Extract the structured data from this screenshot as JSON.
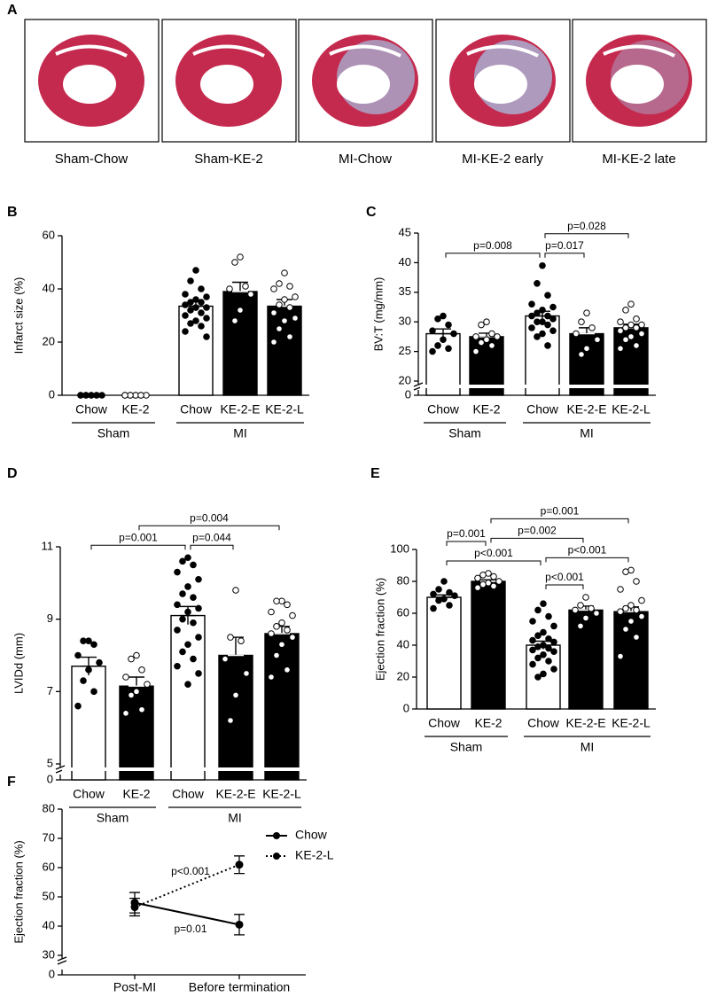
{
  "histology": {
    "panel": "A",
    "captions": [
      "Sham-Chow",
      "Sham-KE-2",
      "MI-Chow",
      "MI-KE-2 early",
      "MI-KE-2 late"
    ]
  },
  "chart_data": [
    {
      "panel": "B",
      "type": "bar",
      "ylabel": "Infarct size (%)",
      "categories": [
        "Chow",
        "KE-2",
        "Chow",
        "KE-2-E",
        "KE-2-L"
      ],
      "groups": [
        {
          "name": "Sham",
          "members": [
            0,
            1
          ]
        },
        {
          "name": "MI",
          "members": [
            2,
            3,
            4
          ]
        }
      ],
      "values": [
        0,
        0,
        33.5,
        39,
        33.5
      ],
      "errors": [
        null,
        null,
        1.8,
        3.5,
        2.5
      ],
      "points": [
        [
          0,
          0,
          0,
          0,
          0,
          0,
          0,
          0,
          0
        ],
        [
          0,
          0,
          0,
          0,
          0,
          0,
          0,
          0,
          0
        ],
        [
          47,
          43,
          40,
          38,
          37,
          36,
          35,
          35,
          34,
          33,
          33,
          32,
          31,
          30,
          29,
          28,
          27,
          26,
          24,
          22
        ],
        [
          52,
          50,
          41,
          40,
          38,
          32,
          28
        ],
        [
          46,
          42,
          41,
          40,
          37,
          36,
          34,
          33,
          31,
          29,
          28,
          25,
          22,
          20
        ]
      ],
      "bar_colors": [
        "#ffffff",
        "#000000",
        "#ffffff",
        "#000000",
        "#000000"
      ],
      "marker_colors": [
        "#000000",
        "#ffffff",
        "#000000",
        "#ffffff",
        "#ffffff"
      ],
      "ylim": [
        0,
        60
      ],
      "yticks": [
        0,
        20,
        40,
        60
      ],
      "comparisons": []
    },
    {
      "panel": "C",
      "type": "bar",
      "ylabel": "BV:T (mg/mm)",
      "categories": [
        "Chow",
        "KE-2",
        "Chow",
        "KE-2-E",
        "KE-2-L"
      ],
      "groups": [
        {
          "name": "Sham",
          "members": [
            0,
            1
          ]
        },
        {
          "name": "MI",
          "members": [
            2,
            3,
            4
          ]
        }
      ],
      "values": [
        28,
        27.5,
        31,
        28,
        29
      ],
      "errors": [
        0.8,
        0.6,
        0.8,
        1,
        0.6
      ],
      "points": [
        [
          31,
          30.5,
          29.5,
          28.5,
          28,
          27,
          26,
          25.5,
          25
        ],
        [
          30,
          29.5,
          28,
          27.5,
          27.5,
          27,
          26.5,
          26,
          25
        ],
        [
          39.5,
          36.5,
          34.5,
          33,
          32.5,
          32,
          31.5,
          31,
          31,
          30.5,
          30,
          30,
          29.5,
          29,
          28.5,
          28,
          27.5,
          26
        ],
        [
          31.5,
          30,
          29,
          28,
          27,
          25.5,
          24.5
        ],
        [
          33,
          32,
          30.5,
          30,
          29.5,
          29.5,
          29,
          29,
          28.5,
          28,
          27.5,
          27,
          26,
          25.5
        ]
      ],
      "bar_colors": [
        "#ffffff",
        "#000000",
        "#ffffff",
        "#000000",
        "#000000"
      ],
      "marker_colors": [
        "#000000",
        "#ffffff",
        "#000000",
        "#ffffff",
        "#ffffff"
      ],
      "ylim": [
        20,
        45
      ],
      "yticks": [
        20,
        25,
        30,
        35,
        40,
        45
      ],
      "ybreak_tick": 0,
      "comparisons": [
        {
          "label": "p=0.017",
          "between": [
            2,
            3
          ]
        },
        {
          "label": "p=0.008",
          "between": [
            0,
            2
          ]
        },
        {
          "label": "p=0.028",
          "between": [
            2,
            4
          ]
        }
      ]
    },
    {
      "panel": "D",
      "type": "bar",
      "ylabel": "LVIDd (mm)",
      "categories": [
        "Chow",
        "KE-2",
        "Chow",
        "KE-2-E",
        "KE-2-L"
      ],
      "groups": [
        {
          "name": "Sham",
          "members": [
            0,
            1
          ]
        },
        {
          "name": "MI",
          "members": [
            2,
            3,
            4
          ]
        }
      ],
      "values": [
        7.7,
        7.15,
        9.1,
        8,
        8.6
      ],
      "errors": [
        0.25,
        0.25,
        0.25,
        0.5,
        0.2
      ],
      "points": [
        [
          8.4,
          8.4,
          8.3,
          8,
          7.8,
          7.6,
          7.3,
          7,
          6.6
        ],
        [
          8,
          7.9,
          7.6,
          7.4,
          7.2,
          7,
          6.9,
          6.5,
          6.4
        ],
        [
          10.7,
          10.6,
          10.5,
          10.3,
          10.1,
          9.9,
          9.7,
          9.6,
          9.4,
          9.3,
          9.2,
          9,
          8.9,
          8.7,
          8.5,
          8.3,
          8.1,
          7.9,
          7.7,
          7.5,
          7.2
        ],
        [
          9.8,
          8.5,
          8.4,
          7.9,
          7.5,
          6.9,
          6.2
        ],
        [
          9.5,
          9.5,
          9.4,
          9.2,
          9.1,
          8.9,
          8.8,
          8.7,
          8.6,
          8.5,
          8.3,
          8,
          7.6,
          7.4
        ]
      ],
      "bar_colors": [
        "#ffffff",
        "#000000",
        "#ffffff",
        "#000000",
        "#000000"
      ],
      "marker_colors": [
        "#000000",
        "#ffffff",
        "#000000",
        "#ffffff",
        "#ffffff"
      ],
      "ylim": [
        5,
        11
      ],
      "yticks": [
        5,
        7,
        9,
        11
      ],
      "ybreak_tick": 0,
      "comparisons": [
        {
          "label": "p=0.044",
          "between": [
            2,
            3
          ]
        },
        {
          "label": "p=0.001",
          "between": [
            0,
            2
          ]
        },
        {
          "label": "p=0.004",
          "between": [
            1,
            4
          ]
        }
      ]
    },
    {
      "panel": "E",
      "type": "bar",
      "ylabel": "Ejection fraction (%)",
      "categories": [
        "Chow",
        "KE-2",
        "Chow",
        "KE-2-E",
        "KE-2-L"
      ],
      "groups": [
        {
          "name": "Sham",
          "members": [
            0,
            1
          ]
        },
        {
          "name": "MI",
          "members": [
            2,
            3,
            4
          ]
        }
      ],
      "values": [
        70,
        80,
        40,
        62,
        61
      ],
      "errors": [
        1.5,
        1,
        2.5,
        2.5,
        3
      ],
      "points": [
        [
          80,
          75,
          73,
          72,
          71,
          69,
          68,
          65,
          63
        ],
        [
          85,
          84,
          83,
          82,
          80,
          79,
          78,
          77,
          76
        ],
        [
          66,
          62,
          58,
          55,
          52,
          48,
          46,
          44,
          43,
          42,
          40,
          39,
          38,
          37,
          36,
          34,
          32,
          30,
          28,
          25,
          22,
          20
        ],
        [
          70,
          65,
          63,
          62,
          60,
          57,
          52
        ],
        [
          87,
          86,
          80,
          75,
          68,
          65,
          63,
          62,
          61,
          58,
          55,
          50,
          45,
          33
        ]
      ],
      "bar_colors": [
        "#ffffff",
        "#000000",
        "#ffffff",
        "#000000",
        "#000000"
      ],
      "marker_colors": [
        "#000000",
        "#ffffff",
        "#000000",
        "#ffffff",
        "#ffffff"
      ],
      "ylim": [
        0,
        100
      ],
      "yticks": [
        0,
        20,
        40,
        60,
        80,
        100
      ],
      "comparisons": [
        {
          "label": "p<0.001",
          "between": [
            2,
            3
          ]
        },
        {
          "label": "p<0.001",
          "between": [
            0,
            2
          ]
        },
        {
          "label": "p<0.001",
          "between": [
            2,
            4
          ]
        },
        {
          "label": "p=0.001",
          "between": [
            0,
            1
          ]
        },
        {
          "label": "p=0.002",
          "between": [
            1,
            3
          ]
        },
        {
          "label": "p=0.001",
          "between": [
            1,
            4
          ]
        }
      ]
    },
    {
      "panel": "F",
      "type": "line",
      "ylabel": "Ejection fraction (%)",
      "categories": [
        "Post-MI",
        "Before termination"
      ],
      "series": [
        {
          "name": "Chow",
          "color": "#000000",
          "line_style": "solid",
          "values": [
            48,
            40.5
          ],
          "errors": [
            3.5,
            3.5
          ],
          "annotation": "p=0.01"
        },
        {
          "name": "KE-2-L",
          "color": "#000000",
          "line_style": "dotted",
          "values": [
            46.5,
            61
          ],
          "errors": [
            3,
            3
          ],
          "annotation": "p<0.001"
        }
      ],
      "ylim": [
        30,
        80
      ],
      "yticks": [
        30,
        40,
        50,
        60,
        70,
        80
      ],
      "ybreak_tick": 0,
      "legend": "right"
    }
  ]
}
